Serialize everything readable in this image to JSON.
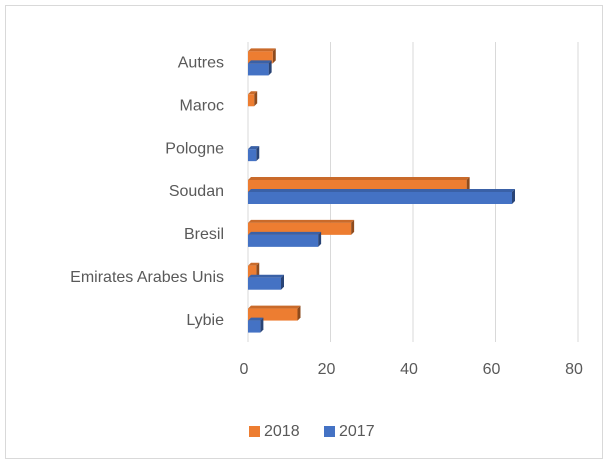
{
  "chart_data": {
    "type": "bar",
    "categories": [
      "Lybie",
      "Emirates Arabes Unis",
      "Bresil",
      "Soudan",
      "Pologne",
      "Maroc",
      "Autres"
    ],
    "series": [
      {
        "name": "2018",
        "color": "#ed7d31",
        "values": [
          12,
          2,
          25,
          53,
          0,
          1.5,
          6
        ]
      },
      {
        "name": "2017",
        "color": "#4472c4",
        "values": [
          3,
          8,
          17,
          64,
          2,
          0,
          5
        ]
      }
    ],
    "xlim": [
      0,
      80
    ],
    "xticks": [
      0,
      20,
      40,
      60,
      80
    ],
    "grid": true,
    "legend": "bottom"
  }
}
